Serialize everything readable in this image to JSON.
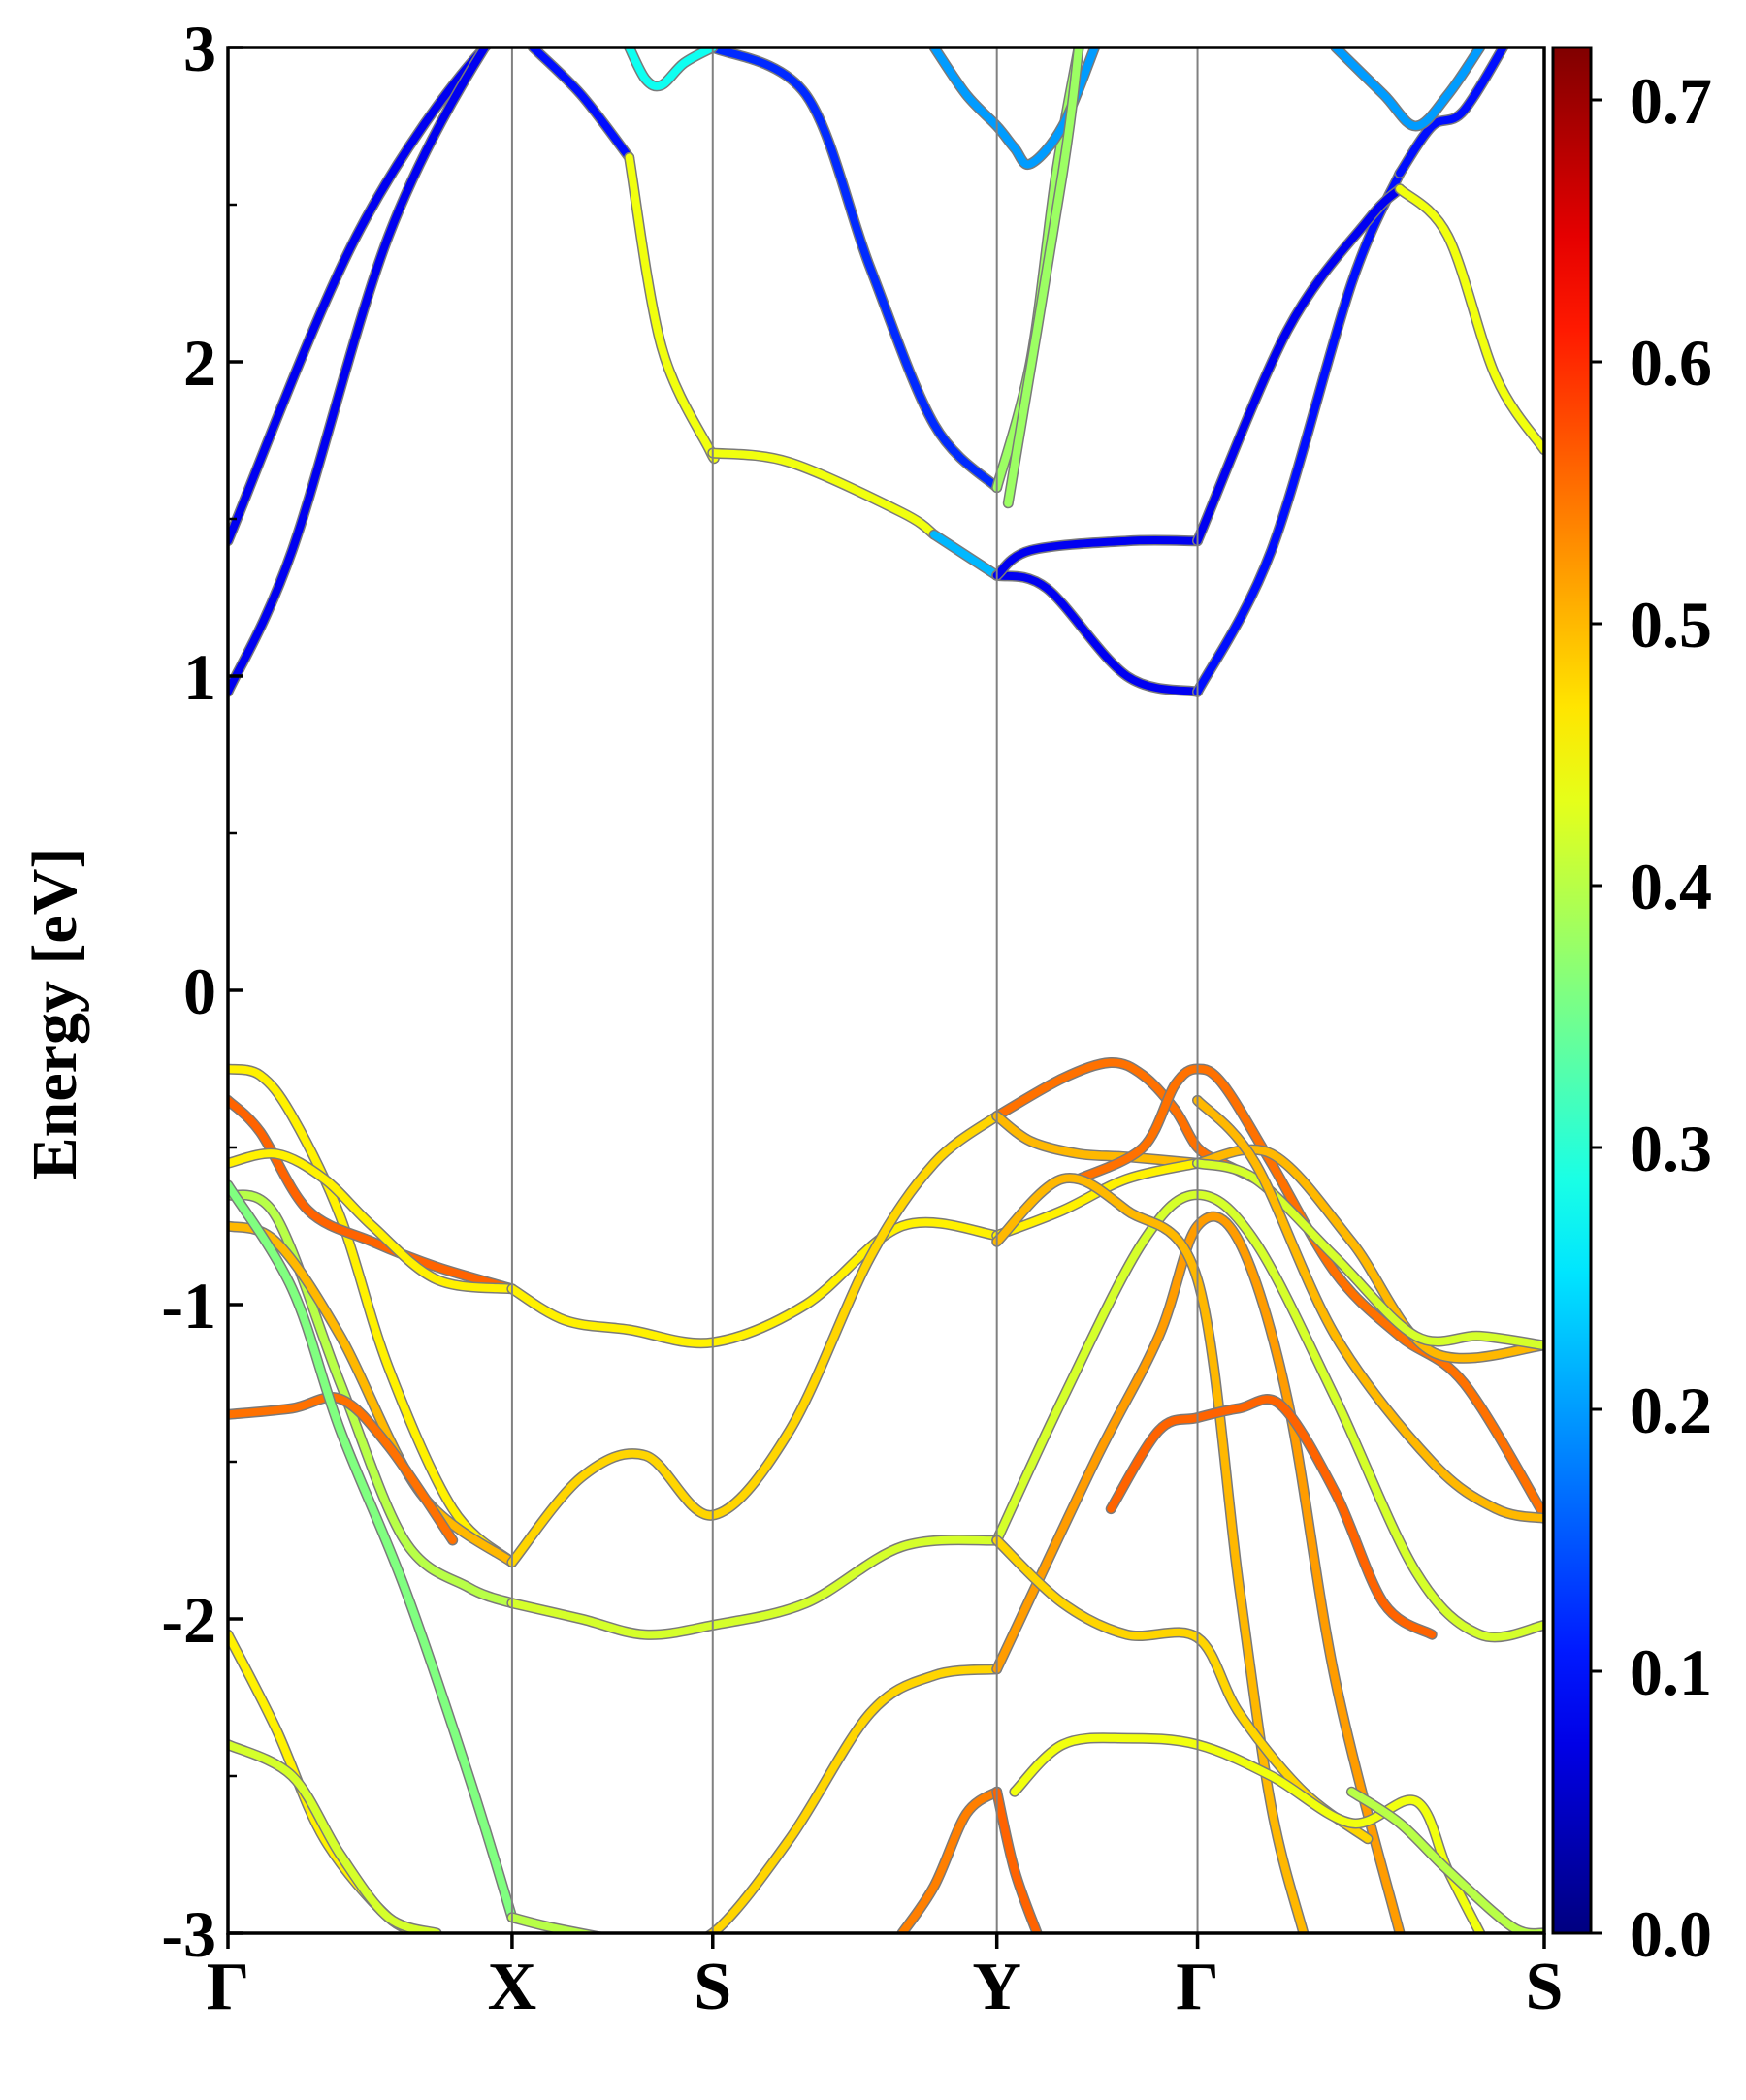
{
  "chart_data": {
    "type": "line",
    "title": "",
    "xlabel": "",
    "ylabel": "Energy [eV]",
    "ylim": [
      -3,
      3
    ],
    "yticks": [
      -3,
      -2,
      -1,
      0,
      1,
      2,
      3
    ],
    "y_minor_step": 0.5,
    "grid": false,
    "kpath": [
      {
        "label": "Γ",
        "x": 0.0
      },
      {
        "label": "X",
        "x": 0.885
      },
      {
        "label": "S",
        "x": 1.51
      },
      {
        "label": "Y",
        "x": 2.395
      },
      {
        "label": "Γ",
        "x": 3.02
      },
      {
        "label": "S",
        "x": 4.1
      }
    ],
    "colorbar": {
      "colormap": "jet",
      "min": 0.0,
      "max": 0.72,
      "ticks": [
        0.0,
        0.1,
        0.2,
        0.3,
        0.4,
        0.5,
        0.6,
        0.7
      ],
      "tick_labels": [
        "0.0",
        "0.1",
        "0.2",
        "0.3",
        "0.4",
        "0.5",
        "0.6",
        "0.7"
      ]
    },
    "series": [
      {
        "color_value": 0.08,
        "x": [
          0.0,
          0.4,
          0.8,
          1.0,
          1.1
        ],
        "y": [
          1.43,
          2.4,
          3.0,
          3.05,
          3.1
        ]
      },
      {
        "color_value": 0.08,
        "x": [
          0.0,
          0.2,
          0.5,
          0.8,
          0.9
        ],
        "y": [
          0.95,
          1.4,
          2.4,
          3.0,
          3.05
        ]
      },
      {
        "color_value": 0.1,
        "x": [
          0.95,
          1.1,
          1.25
        ],
        "y": [
          3.0,
          2.85,
          2.65
        ]
      },
      {
        "color_value": 0.44,
        "x": [
          1.25,
          1.35,
          1.5,
          1.51
        ],
        "y": [
          2.65,
          2.05,
          1.72,
          1.71
        ]
      },
      {
        "color_value": 0.44,
        "x": [
          1.51,
          1.75,
          2.1,
          2.2
        ],
        "y": [
          1.71,
          1.68,
          1.52,
          1.45
        ]
      },
      {
        "color_value": 0.22,
        "x": [
          2.2,
          2.395
        ],
        "y": [
          1.45,
          1.32
        ]
      },
      {
        "color_value": 0.08,
        "x": [
          2.395,
          2.55,
          2.8,
          3.02
        ],
        "y": [
          1.32,
          1.28,
          1.0,
          0.95
        ]
      },
      {
        "color_value": 0.1,
        "x": [
          3.02,
          3.25,
          3.5,
          3.65
        ],
        "y": [
          0.95,
          1.4,
          2.25,
          2.6
        ]
      },
      {
        "color_value": 0.1,
        "x": [
          3.65,
          3.75,
          3.85,
          4.0
        ],
        "y": [
          2.6,
          2.75,
          2.8,
          3.05
        ]
      },
      {
        "color_value": 0.08,
        "x": [
          2.395,
          2.5,
          2.8,
          3.02
        ],
        "y": [
          1.32,
          1.4,
          1.43,
          1.43
        ]
      },
      {
        "color_value": 0.08,
        "x": [
          3.02,
          3.3,
          3.55,
          3.65
        ],
        "y": [
          1.43,
          2.1,
          2.45,
          2.55
        ]
      },
      {
        "color_value": 0.44,
        "x": [
          3.65,
          3.8,
          3.95,
          4.1
        ],
        "y": [
          2.55,
          2.4,
          1.95,
          1.72
        ]
      },
      {
        "color_value": 0.12,
        "x": [
          1.51,
          1.8,
          2.0,
          2.2,
          2.395
        ],
        "y": [
          3.0,
          2.85,
          2.3,
          1.8,
          1.6
        ]
      },
      {
        "color_value": 0.38,
        "x": [
          2.395,
          2.5,
          2.58,
          2.65
        ],
        "y": [
          1.6,
          2.0,
          2.6,
          3.0
        ]
      },
      {
        "color_value": 0.2,
        "x": [
          2.2,
          2.3,
          2.395,
          2.45,
          2.5,
          2.6,
          2.7
        ],
        "y": [
          3.0,
          2.85,
          2.75,
          2.68,
          2.63,
          2.75,
          3.0
        ]
      },
      {
        "color_value": 0.38,
        "x": [
          2.43,
          2.6,
          2.65
        ],
        "y": [
          1.55,
          2.6,
          3.0
        ]
      },
      {
        "color_value": 0.28,
        "x": [
          1.25,
          1.3,
          1.35,
          1.42,
          1.51
        ],
        "y": [
          3.0,
          2.9,
          2.88,
          2.95,
          3.0
        ]
      },
      {
        "color_value": 0.2,
        "x": [
          3.45,
          3.6,
          3.7,
          3.8,
          3.9
        ],
        "y": [
          3.0,
          2.85,
          2.75,
          2.85,
          3.0
        ]
      },
      {
        "color_value": 0.46,
        "x": [
          0.0,
          0.1,
          0.2,
          0.35,
          0.5,
          0.7,
          0.885
        ],
        "y": [
          -0.25,
          -0.27,
          -0.4,
          -0.72,
          -1.2,
          -1.65,
          -1.82
        ]
      },
      {
        "color_value": 0.56,
        "x": [
          0.0,
          0.1,
          0.25,
          0.45,
          0.65,
          0.885
        ],
        "y": [
          -0.35,
          -0.45,
          -0.7,
          -0.8,
          -0.88,
          -0.95
        ]
      },
      {
        "color_value": 0.46,
        "x": [
          0.0,
          0.15,
          0.3,
          0.45,
          0.65,
          0.885
        ],
        "y": [
          -0.55,
          -0.52,
          -0.6,
          -0.75,
          -0.92,
          -0.95
        ]
      },
      {
        "color_value": 0.4,
        "x": [
          0.0,
          0.15,
          0.35,
          0.55,
          0.75,
          0.885
        ],
        "y": [
          -0.65,
          -0.72,
          -1.25,
          -1.75,
          -1.9,
          -1.95
        ]
      },
      {
        "color_value": 0.5,
        "x": [
          0.0,
          0.15,
          0.35,
          0.6,
          0.885
        ],
        "y": [
          -0.75,
          -0.8,
          -1.1,
          -1.6,
          -1.82
        ]
      },
      {
        "color_value": 0.55,
        "x": [
          0.0,
          0.2,
          0.35,
          0.5,
          0.7
        ],
        "y": [
          -1.35,
          -1.33,
          -1.3,
          -1.45,
          -1.75
        ]
      },
      {
        "color_value": 0.36,
        "x": [
          0.0,
          0.2,
          0.35,
          0.55,
          0.75,
          0.885
        ],
        "y": [
          -0.62,
          -0.95,
          -1.4,
          -1.9,
          -2.5,
          -2.95
        ]
      },
      {
        "color_value": 0.46,
        "x": [
          0.0,
          0.15,
          0.3,
          0.5,
          0.62
        ],
        "y": [
          -2.05,
          -2.35,
          -2.7,
          -2.95,
          -3.0
        ]
      },
      {
        "color_value": 0.42,
        "x": [
          0.0,
          0.2,
          0.35,
          0.5,
          0.65
        ],
        "y": [
          -2.4,
          -2.5,
          -2.75,
          -2.95,
          -3.0
        ]
      },
      {
        "color_value": 0.4,
        "x": [
          0.885,
          1.0,
          1.2
        ],
        "y": [
          -2.95,
          -2.98,
          -3.02
        ]
      },
      {
        "color_value": 0.46,
        "x": [
          0.885,
          1.05,
          1.25,
          1.51,
          1.8,
          2.1,
          2.395
        ],
        "y": [
          -0.95,
          -1.05,
          -1.08,
          -1.12,
          -1.0,
          -0.75,
          -0.78
        ]
      },
      {
        "color_value": 0.48,
        "x": [
          0.885,
          1.1,
          1.3,
          1.51,
          1.75,
          2.0,
          2.2,
          2.395
        ],
        "y": [
          -1.82,
          -1.55,
          -1.48,
          -1.67,
          -1.4,
          -0.85,
          -0.55,
          -0.4
        ]
      },
      {
        "color_value": 0.42,
        "x": [
          0.885,
          1.1,
          1.3,
          1.51,
          1.8,
          2.1,
          2.395
        ],
        "y": [
          -1.95,
          -2.0,
          -2.05,
          -2.02,
          -1.95,
          -1.77,
          -1.75
        ]
      },
      {
        "color_value": 0.48,
        "x": [
          1.35,
          1.51,
          1.75,
          2.0,
          2.2,
          2.395
        ],
        "y": [
          -3.02,
          -3.0,
          -2.7,
          -2.3,
          -2.18,
          -2.16
        ]
      },
      {
        "color_value": 0.54,
        "x": [
          2.1,
          2.2,
          2.3,
          2.395
        ],
        "y": [
          -3.0,
          -2.85,
          -2.62,
          -2.55
        ]
      },
      {
        "color_value": 0.56,
        "x": [
          2.395,
          2.45,
          2.52
        ],
        "y": [
          -2.55,
          -2.8,
          -3.0
        ]
      },
      {
        "color_value": 0.55,
        "x": [
          2.395,
          2.6,
          2.75,
          2.85,
          2.95,
          3.02,
          3.1,
          3.2
        ],
        "y": [
          -0.4,
          -0.28,
          -0.23,
          -0.27,
          -0.38,
          -0.5,
          -0.55,
          -0.6
        ]
      },
      {
        "color_value": 0.5,
        "x": [
          2.395,
          2.5,
          2.65,
          2.8,
          3.02
        ],
        "y": [
          -0.4,
          -0.48,
          -0.52,
          -0.53,
          -0.55
        ]
      },
      {
        "color_value": 0.46,
        "x": [
          2.395,
          2.6,
          2.8,
          3.02
        ],
        "y": [
          -0.78,
          -0.7,
          -0.6,
          -0.55
        ]
      },
      {
        "color_value": 0.55,
        "x": [
          2.65,
          2.85,
          2.95,
          3.02,
          3.1,
          3.25,
          3.45,
          3.65,
          3.85,
          4.1
        ],
        "y": [
          -0.6,
          -0.5,
          -0.3,
          -0.25,
          -0.3,
          -0.55,
          -0.9,
          -1.1,
          -1.25,
          -1.67
        ]
      },
      {
        "color_value": 0.5,
        "x": [
          3.02,
          3.25,
          3.5,
          3.75,
          4.1
        ],
        "y": [
          -0.55,
          -0.52,
          -0.8,
          -1.15,
          -1.13
        ]
      },
      {
        "color_value": 0.42,
        "x": [
          3.02,
          3.2,
          3.45,
          3.7,
          3.9,
          4.1
        ],
        "y": [
          -0.55,
          -0.6,
          -0.85,
          -1.1,
          -1.1,
          -1.13
        ]
      },
      {
        "color_value": 0.5,
        "x": [
          3.02,
          3.2,
          3.45,
          3.75,
          3.95,
          4.1
        ],
        "y": [
          -0.35,
          -0.55,
          -1.1,
          -1.5,
          -1.65,
          -1.68
        ]
      },
      {
        "color_value": 0.42,
        "x": [
          2.395,
          2.6,
          2.85,
          3.02,
          3.2,
          3.45,
          3.7,
          3.9,
          4.1
        ],
        "y": [
          -1.75,
          -1.3,
          -0.8,
          -0.65,
          -0.8,
          -1.3,
          -1.85,
          -2.05,
          -2.02
        ]
      },
      {
        "color_value": 0.52,
        "x": [
          2.395,
          2.7,
          2.9,
          3.02,
          3.15,
          3.3,
          3.45,
          3.65
        ],
        "y": [
          -2.16,
          -1.5,
          -1.1,
          -0.75,
          -0.8,
          -1.3,
          -2.2,
          -3.0
        ]
      },
      {
        "color_value": 0.5,
        "x": [
          2.395,
          2.6,
          2.8,
          3.02,
          3.15,
          3.25,
          3.35
        ],
        "y": [
          -0.8,
          -0.6,
          -0.7,
          -0.92,
          -1.9,
          -2.6,
          -3.0
        ]
      },
      {
        "color_value": 0.56,
        "x": [
          2.75,
          2.9,
          3.02,
          3.15,
          3.28,
          3.45,
          3.6,
          3.75
        ],
        "y": [
          -1.65,
          -1.4,
          -1.36,
          -1.33,
          -1.32,
          -1.6,
          -1.95,
          -2.05
        ]
      },
      {
        "color_value": 0.48,
        "x": [
          2.395,
          2.6,
          2.8,
          3.02,
          3.15,
          3.35,
          3.55
        ],
        "y": [
          -1.75,
          -1.95,
          -2.05,
          -2.06,
          -2.3,
          -2.55,
          -2.7
        ]
      },
      {
        "color_value": 0.44,
        "x": [
          2.45,
          2.6,
          2.8,
          3.02,
          3.25,
          3.5,
          3.7,
          3.8,
          3.9
        ],
        "y": [
          -2.55,
          -2.4,
          -2.38,
          -2.4,
          -2.5,
          -2.65,
          -2.58,
          -2.8,
          -3.0
        ]
      },
      {
        "color_value": 0.4,
        "x": [
          3.5,
          3.65,
          3.8,
          4.0,
          4.1
        ],
        "y": [
          -2.55,
          -2.65,
          -2.8,
          -2.98,
          -3.0
        ]
      }
    ]
  }
}
